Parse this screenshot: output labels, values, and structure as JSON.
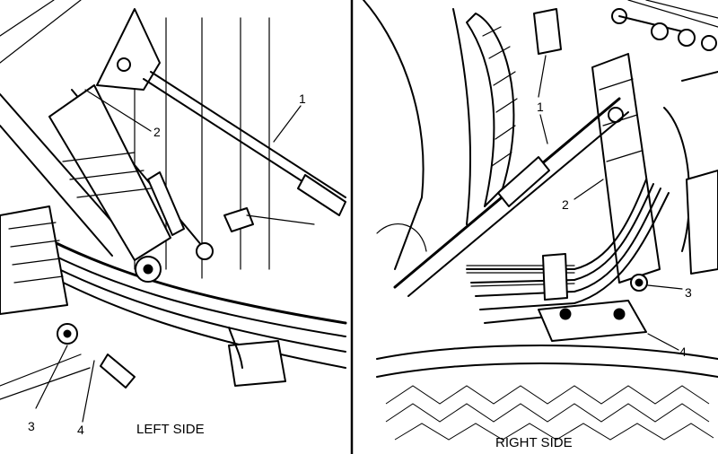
{
  "left_panel": {
    "caption": "LEFT SIDE",
    "callouts": {
      "c1": "1",
      "c2": "2",
      "c3": "3",
      "c4": "4"
    }
  },
  "right_panel": {
    "caption": "RIGHT SIDE",
    "callouts": {
      "c1": "1",
      "c2": "2",
      "c3": "3",
      "c4": "4"
    }
  }
}
